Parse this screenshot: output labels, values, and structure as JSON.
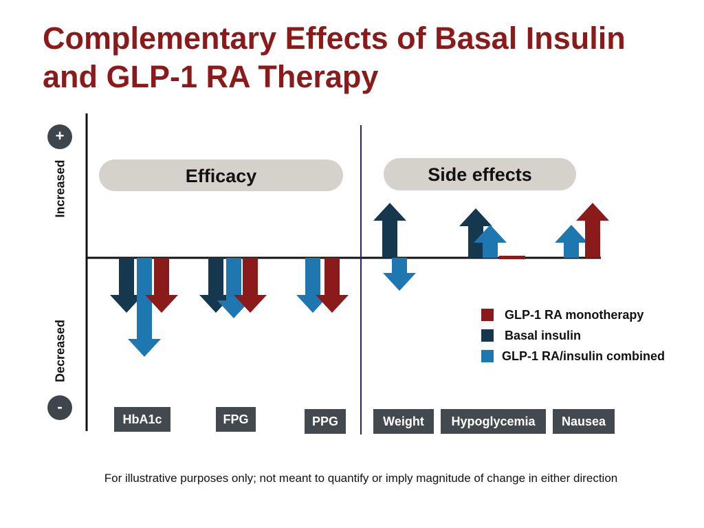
{
  "title_line1": "Complementary Effects of Basal Insulin",
  "title_line2": "and GLP-1 RA Therapy",
  "footnote": "For illustrative purposes only; not meant to quantify or imply magnitude of change in either direction",
  "colors": {
    "glp1": "#8b1a1a",
    "basal": "#16384f",
    "combined": "#1f77b0",
    "title": "#8b1a1a"
  },
  "chart_data": {
    "type": "bar",
    "groups": [
      "Efficacy",
      "Side effects"
    ],
    "ylabel_increased": "Increased",
    "ylabel_decreased": "Decreased",
    "plus_sign": "+",
    "minus_sign": "-",
    "categories": [
      "HbA1c",
      "FPG",
      "PPG",
      "Weight",
      "Hypoglycemia",
      "Nausea"
    ],
    "category_groups": [
      "Efficacy",
      "Efficacy",
      "Efficacy",
      "Side effects",
      "Side effects",
      "Side effects"
    ],
    "ylim": [
      -2,
      2
    ],
    "series": [
      {
        "name": "GLP-1 RA monotherapy",
        "color": "#8b1a1a",
        "values": [
          -1.0,
          -1.0,
          -1.0,
          null,
          0,
          1.0
        ]
      },
      {
        "name": "Basal insulin",
        "color": "#16384f",
        "values": [
          -1.0,
          -1.0,
          null,
          1.0,
          0.9,
          null
        ]
      },
      {
        "name": "GLP-1 RA/insulin combined",
        "color": "#1f77b0",
        "values": [
          -1.8,
          -1.1,
          -1.0,
          -0.6,
          0.6,
          0.6
        ]
      }
    ],
    "note": "Arrows indicate direction only (illustrative, not quantitative)."
  }
}
